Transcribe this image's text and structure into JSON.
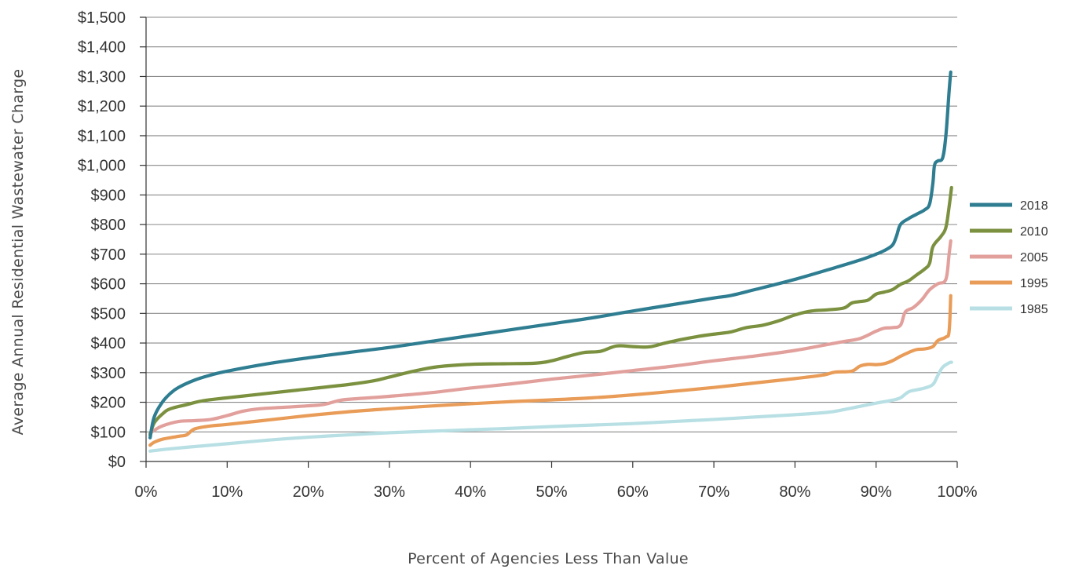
{
  "chart_data": {
    "type": "line",
    "xlabel": "Percent of Agencies Less Than Value",
    "ylabel": "Average Annual Residential Wastewater Charge",
    "xlim": [
      0,
      100
    ],
    "ylim": [
      0,
      1500
    ],
    "x_ticks": [
      0,
      10,
      20,
      30,
      40,
      50,
      60,
      70,
      80,
      90,
      100
    ],
    "x_tick_labels": [
      "0%",
      "10%",
      "20%",
      "30%",
      "40%",
      "50%",
      "60%",
      "70%",
      "80%",
      "90%",
      "100%"
    ],
    "y_ticks": [
      0,
      100,
      200,
      300,
      400,
      500,
      600,
      700,
      800,
      900,
      1000,
      1100,
      1200,
      1300,
      1400,
      1500
    ],
    "y_tick_labels": [
      "$0",
      "$100",
      "$200",
      "$300",
      "$400",
      "$500",
      "$600",
      "$700",
      "$800",
      "$900",
      "$1,000",
      "$1,100",
      "$1,200",
      "$1,300",
      "$1,400",
      "$1,500"
    ],
    "grid": "horizontal",
    "legend_position": "right",
    "series": [
      {
        "name": "2018",
        "color": "#2e7d91",
        "points": [
          [
            0.5,
            80
          ],
          [
            1,
            150
          ],
          [
            2,
            200
          ],
          [
            3,
            230
          ],
          [
            4,
            250
          ],
          [
            6,
            275
          ],
          [
            8,
            292
          ],
          [
            10,
            305
          ],
          [
            15,
            330
          ],
          [
            20,
            350
          ],
          [
            25,
            368
          ],
          [
            30,
            385
          ],
          [
            35,
            405
          ],
          [
            40,
            425
          ],
          [
            45,
            445
          ],
          [
            50,
            465
          ],
          [
            55,
            485
          ],
          [
            60,
            508
          ],
          [
            65,
            530
          ],
          [
            70,
            552
          ],
          [
            72,
            560
          ],
          [
            75,
            580
          ],
          [
            80,
            615
          ],
          [
            85,
            655
          ],
          [
            88,
            680
          ],
          [
            90,
            700
          ],
          [
            91,
            712
          ],
          [
            92,
            730
          ],
          [
            92.5,
            760
          ],
          [
            93,
            800
          ],
          [
            94,
            820
          ],
          [
            95,
            835
          ],
          [
            96,
            850
          ],
          [
            96.6,
            870
          ],
          [
            97,
            940
          ],
          [
            97.2,
            1000
          ],
          [
            97.6,
            1015
          ],
          [
            98.2,
            1025
          ],
          [
            98.6,
            1100
          ],
          [
            99,
            1250
          ],
          [
            99.2,
            1315
          ]
        ]
      },
      {
        "name": "2010",
        "color": "#7b913f",
        "points": [
          [
            0.5,
            90
          ],
          [
            1,
            130
          ],
          [
            2,
            160
          ],
          [
            3,
            178
          ],
          [
            5,
            192
          ],
          [
            7,
            205
          ],
          [
            10,
            215
          ],
          [
            15,
            230
          ],
          [
            20,
            245
          ],
          [
            25,
            260
          ],
          [
            28,
            272
          ],
          [
            30,
            285
          ],
          [
            33,
            305
          ],
          [
            36,
            320
          ],
          [
            40,
            328
          ],
          [
            44,
            330
          ],
          [
            48,
            332
          ],
          [
            50,
            340
          ],
          [
            52,
            355
          ],
          [
            54,
            368
          ],
          [
            56,
            372
          ],
          [
            58,
            390
          ],
          [
            60,
            388
          ],
          [
            62,
            387
          ],
          [
            64,
            400
          ],
          [
            66,
            412
          ],
          [
            68,
            422
          ],
          [
            70,
            430
          ],
          [
            72,
            437
          ],
          [
            74,
            452
          ],
          [
            76,
            460
          ],
          [
            78,
            475
          ],
          [
            80,
            495
          ],
          [
            82,
            508
          ],
          [
            84,
            512
          ],
          [
            86,
            518
          ],
          [
            87,
            535
          ],
          [
            88,
            540
          ],
          [
            89,
            545
          ],
          [
            90,
            565
          ],
          [
            91,
            572
          ],
          [
            92,
            580
          ],
          [
            93,
            598
          ],
          [
            94,
            610
          ],
          [
            95,
            630
          ],
          [
            96,
            650
          ],
          [
            96.6,
            670
          ],
          [
            97,
            725
          ],
          [
            98,
            760
          ],
          [
            98.6,
            790
          ],
          [
            99,
            860
          ],
          [
            99.3,
            925
          ]
        ]
      },
      {
        "name": "2005",
        "color": "#e2a09c",
        "points": [
          [
            0.5,
            95
          ],
          [
            1,
            105
          ],
          [
            2,
            120
          ],
          [
            4,
            135
          ],
          [
            6,
            138
          ],
          [
            8,
            142
          ],
          [
            10,
            155
          ],
          [
            12,
            170
          ],
          [
            14,
            178
          ],
          [
            17,
            183
          ],
          [
            20,
            188
          ],
          [
            22,
            193
          ],
          [
            24,
            207
          ],
          [
            26,
            212
          ],
          [
            30,
            220
          ],
          [
            35,
            232
          ],
          [
            40,
            248
          ],
          [
            45,
            262
          ],
          [
            50,
            278
          ],
          [
            55,
            292
          ],
          [
            60,
            307
          ],
          [
            65,
            322
          ],
          [
            70,
            340
          ],
          [
            75,
            356
          ],
          [
            80,
            375
          ],
          [
            84,
            395
          ],
          [
            86,
            405
          ],
          [
            88,
            415
          ],
          [
            90,
            440
          ],
          [
            91,
            450
          ],
          [
            92,
            452
          ],
          [
            93,
            460
          ],
          [
            93.6,
            505
          ],
          [
            94.6,
            520
          ],
          [
            95.6,
            545
          ],
          [
            96.6,
            580
          ],
          [
            97.6,
            600
          ],
          [
            98.6,
            615
          ],
          [
            99,
            700
          ],
          [
            99.2,
            745
          ]
        ]
      },
      {
        "name": "1995",
        "color": "#e99c58",
        "points": [
          [
            0.5,
            55
          ],
          [
            1,
            65
          ],
          [
            2,
            75
          ],
          [
            4,
            85
          ],
          [
            5,
            90
          ],
          [
            6,
            110
          ],
          [
            8,
            120
          ],
          [
            10,
            125
          ],
          [
            15,
            140
          ],
          [
            20,
            155
          ],
          [
            25,
            168
          ],
          [
            30,
            178
          ],
          [
            35,
            187
          ],
          [
            40,
            195
          ],
          [
            45,
            202
          ],
          [
            50,
            208
          ],
          [
            55,
            215
          ],
          [
            60,
            225
          ],
          [
            65,
            237
          ],
          [
            70,
            250
          ],
          [
            75,
            265
          ],
          [
            80,
            280
          ],
          [
            83,
            290
          ],
          [
            84,
            295
          ],
          [
            85,
            302
          ],
          [
            87,
            305
          ],
          [
            88,
            322
          ],
          [
            89,
            328
          ],
          [
            90,
            327
          ],
          [
            91,
            330
          ],
          [
            92,
            340
          ],
          [
            93,
            355
          ],
          [
            94,
            368
          ],
          [
            95,
            378
          ],
          [
            96,
            380
          ],
          [
            97,
            388
          ],
          [
            97.6,
            408
          ],
          [
            98.6,
            420
          ],
          [
            99,
            440
          ],
          [
            99.2,
            560
          ]
        ]
      },
      {
        "name": "1985",
        "color": "#b8e0e4",
        "points": [
          [
            0.5,
            35
          ],
          [
            2,
            40
          ],
          [
            5,
            48
          ],
          [
            10,
            60
          ],
          [
            15,
            72
          ],
          [
            20,
            82
          ],
          [
            25,
            90
          ],
          [
            30,
            97
          ],
          [
            35,
            102
          ],
          [
            40,
            107
          ],
          [
            45,
            112
          ],
          [
            50,
            118
          ],
          [
            55,
            123
          ],
          [
            60,
            128
          ],
          [
            65,
            135
          ],
          [
            70,
            142
          ],
          [
            75,
            150
          ],
          [
            80,
            158
          ],
          [
            84,
            166
          ],
          [
            86,
            175
          ],
          [
            88,
            186
          ],
          [
            90,
            197
          ],
          [
            92,
            207
          ],
          [
            93,
            215
          ],
          [
            94,
            235
          ],
          [
            95,
            242
          ],
          [
            96,
            248
          ],
          [
            97,
            260
          ],
          [
            97.6,
            290
          ],
          [
            98.2,
            318
          ],
          [
            99,
            333
          ],
          [
            99.3,
            335
          ]
        ]
      }
    ]
  }
}
